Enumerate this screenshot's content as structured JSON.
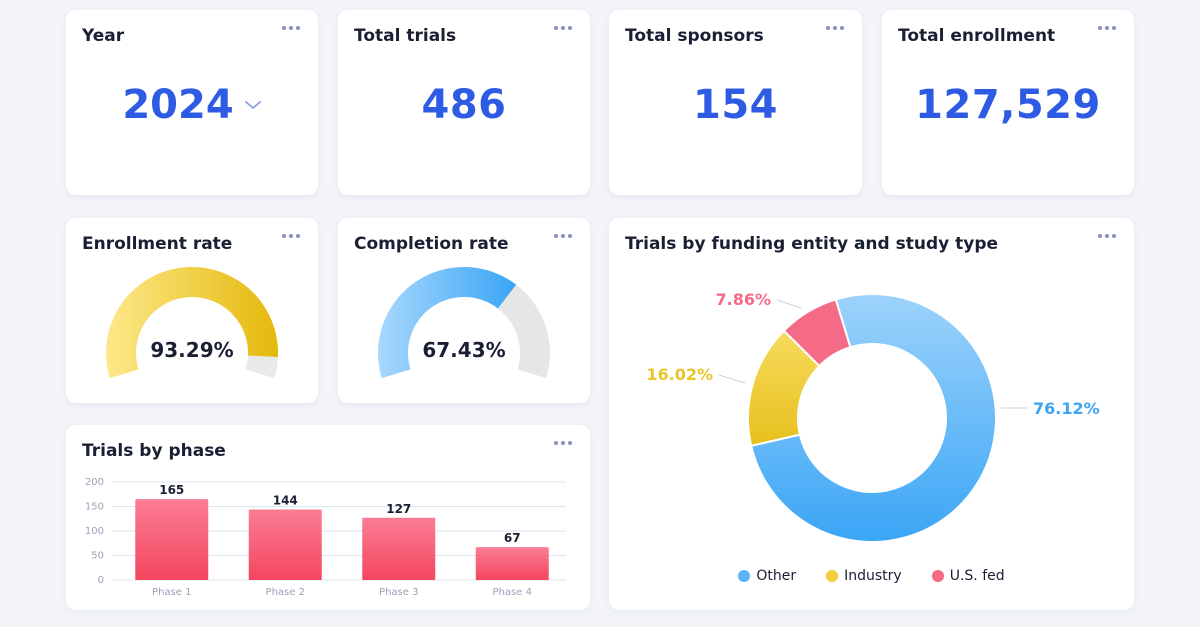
{
  "cards": {
    "year": {
      "title": "Year",
      "value": "2024"
    },
    "total_trials": {
      "title": "Total trials",
      "value": "486"
    },
    "total_sponsors": {
      "title": "Total sponsors",
      "value": "154"
    },
    "total_enrollment": {
      "title": "Total enrollment",
      "value": "127,529"
    },
    "enrollment_rate": {
      "title": "Enrollment rate",
      "value": "93.29%",
      "fraction": 0.9329
    },
    "completion_rate": {
      "title": "Completion rate",
      "value": "67.43%",
      "fraction": 0.6743
    },
    "trials_by_phase": {
      "title": "Trials by phase"
    },
    "funding": {
      "title": "Trials by funding entity and study type"
    }
  },
  "icons": {
    "menu": "more-dots-icon",
    "year_dropdown": "chevron-down-icon"
  },
  "colors": {
    "accent": "#2d5be3",
    "enroll_gauge": "#f2cd3a",
    "complete_gauge": "#5ab4f7",
    "gauge_track": "#e6e6e6",
    "bar": "#f85a7b",
    "other": "#5ab4f7",
    "industry": "#f0cf3a",
    "us_fed": "#f56a87"
  },
  "chart_data": [
    {
      "type": "bar",
      "title": "Trials by phase",
      "categories": [
        "Phase 1",
        "Phase 2",
        "Phase 3",
        "Phase 4"
      ],
      "values": [
        165,
        144,
        127,
        67
      ],
      "value_labels": [
        "165",
        "144",
        "127",
        "67"
      ],
      "ylim": [
        0,
        200
      ],
      "yticks": [
        "0",
        "50",
        "100",
        "150",
        "200"
      ],
      "grid": true
    },
    {
      "type": "pie",
      "title": "Trials by funding entity and study type",
      "categories": [
        "Other",
        "Industry",
        "U.S. fed"
      ],
      "values": [
        76.12,
        16.02,
        7.86
      ],
      "value_labels": [
        "76.12%",
        "16.02%",
        "7.86%"
      ],
      "legend": "bottom"
    }
  ]
}
